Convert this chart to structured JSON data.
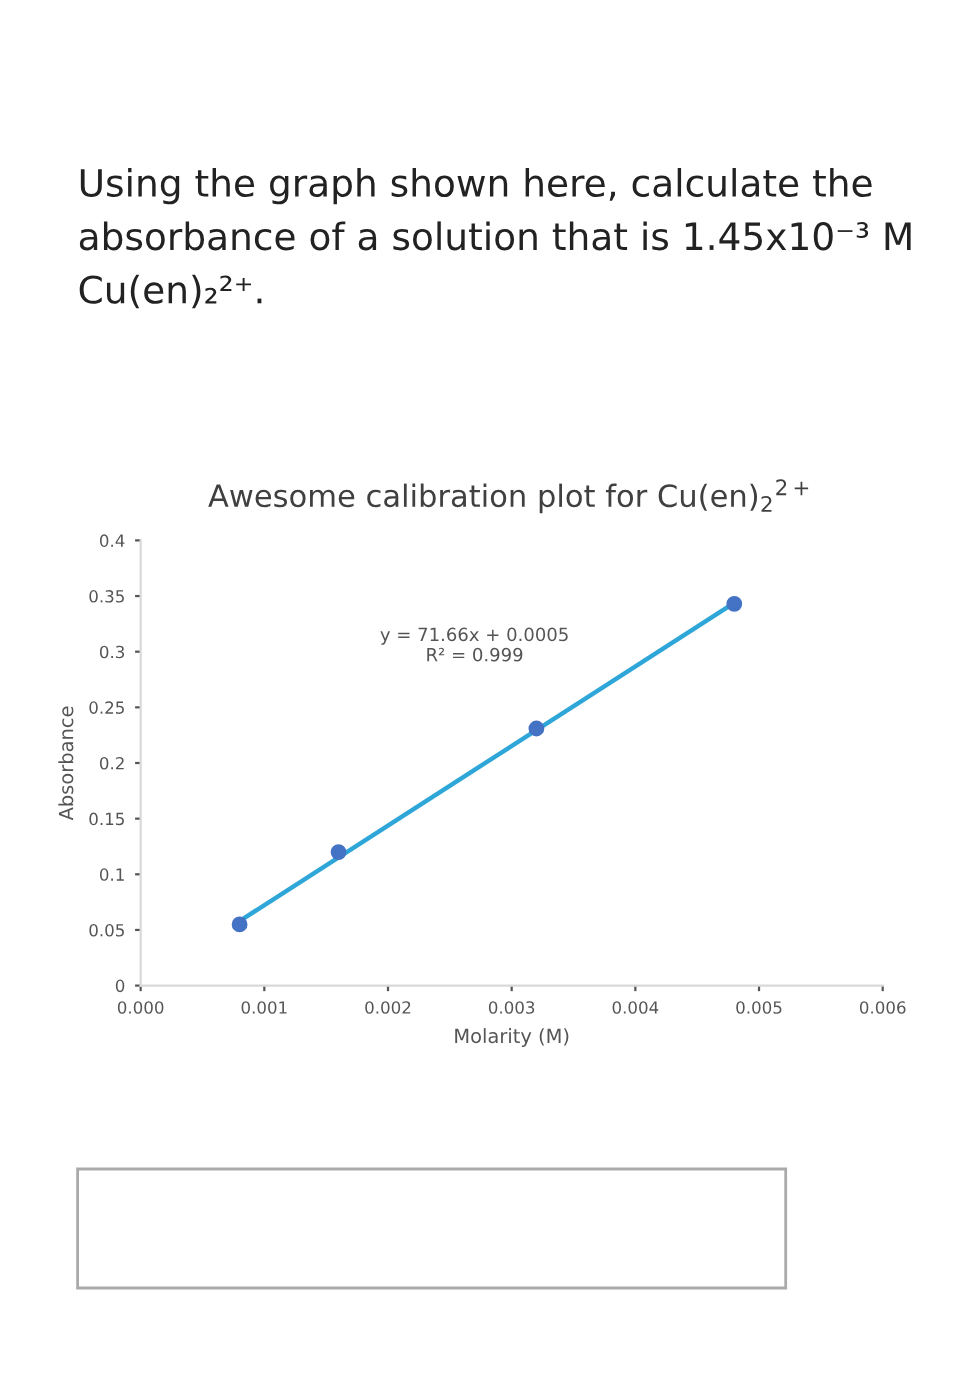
{
  "chart_data": {
    "type": "scatter",
    "title": "Awesome calibration plot for Cu(en)$_{2}$$^{2+}$",
    "xlabel": "Molarity (M)",
    "ylabel": "Absorbance",
    "annotations": [
      "Using the graph shown here, calculate the absorbance of a solution that is 1.45x10⁻³ M Cu(en)₂²⁺.",
      "y = 71.66x + 0.0005\nR² = 0.999"
    ],
    "x": [
      0.0008,
      0.0016,
      0.0032,
      0.0048
    ],
    "series": [
      {
        "color": "#4472c4",
        "marker": "circle",
        "values": [
          0.055,
          0.12,
          0.231,
          0.343
        ]
      },
      {
        "type": "line",
        "marker": "none",
        "color": "#2ea6d8",
        "x": [
          0.0008,
          0.0048
        ],
        "values": [
          0.058,
          0.344
        ]
      }
    ],
    "xlim": [
      0,
      0.006
    ],
    "xticks": [
      {
        "value": 0,
        "label": "0.000"
      },
      {
        "value": 0.001,
        "label": "0.001"
      },
      {
        "value": 0.002,
        "label": "0.002"
      },
      {
        "value": 0.003,
        "label": "0.003"
      },
      {
        "value": 0.004,
        "label": "0.004"
      },
      {
        "value": 0.005,
        "label": "0.005"
      },
      {
        "value": 0.006,
        "label": "0.006"
      }
    ],
    "ylim": [
      0,
      0.4
    ],
    "yticks": [
      0,
      0.05,
      0.1,
      0.15,
      0.2,
      0.25,
      0.3,
      0.35,
      0.4
    ],
    "grid": false,
    "legend": false
  }
}
